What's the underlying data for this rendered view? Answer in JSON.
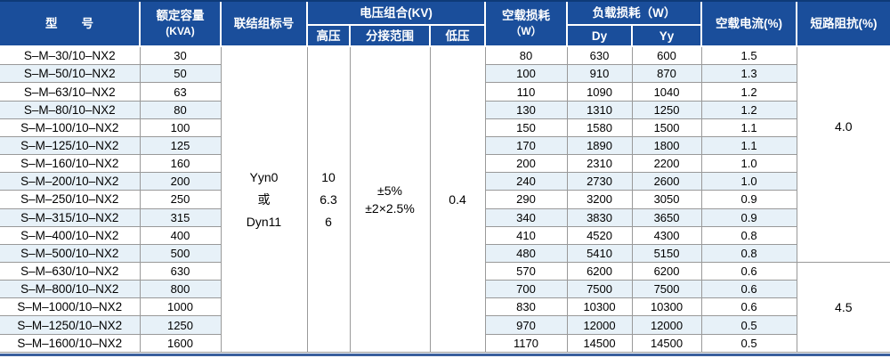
{
  "table": {
    "header": {
      "model": "型　　号",
      "capacity_line1": "额定容量",
      "capacity_line2": "(KVA)",
      "vector_group": "联结组标号",
      "voltage_group": "电压组合(KV)",
      "hv": "高压",
      "tap_range": "分接范围",
      "lv": "低压",
      "no_load_loss_line1": "空载损耗",
      "no_load_loss_line2": "（W）",
      "load_loss": "负载损耗（W）",
      "dy": "Dy",
      "yy": "Yy",
      "no_load_current": "空载电流(%)",
      "short_circuit_impedance": "短路阻抗(%)"
    },
    "merged": {
      "vector_group_lines": [
        "Yyn0",
        "或",
        "Dyn11"
      ],
      "hv_lines": [
        "10",
        "6.3",
        "6"
      ],
      "tap_lines": [
        "±5%",
        "±2×2.5%"
      ],
      "lv": "0.4",
      "impedance_groups": [
        {
          "value": "4.0",
          "rowspan": 12
        },
        {
          "value": "4.5",
          "rowspan": 5
        }
      ]
    },
    "rows": [
      {
        "model": "S–M–30/10–NX2",
        "kva": "30",
        "no_load_loss": "80",
        "dy": "630",
        "yy": "600",
        "no_load_current": "1.5"
      },
      {
        "model": "S–M–50/10–NX2",
        "kva": "50",
        "no_load_loss": "100",
        "dy": "910",
        "yy": "870",
        "no_load_current": "1.3"
      },
      {
        "model": "S–M–63/10–NX2",
        "kva": "63",
        "no_load_loss": "110",
        "dy": "1090",
        "yy": "1040",
        "no_load_current": "1.2"
      },
      {
        "model": "S–M–80/10–NX2",
        "kva": "80",
        "no_load_loss": "130",
        "dy": "1310",
        "yy": "1250",
        "no_load_current": "1.2"
      },
      {
        "model": "S–M–100/10–NX2",
        "kva": "100",
        "no_load_loss": "150",
        "dy": "1580",
        "yy": "1500",
        "no_load_current": "1.1"
      },
      {
        "model": "S–M–125/10–NX2",
        "kva": "125",
        "no_load_loss": "170",
        "dy": "1890",
        "yy": "1800",
        "no_load_current": "1.1"
      },
      {
        "model": "S–M–160/10–NX2",
        "kva": "160",
        "no_load_loss": "200",
        "dy": "2310",
        "yy": "2200",
        "no_load_current": "1.0"
      },
      {
        "model": "S–M–200/10–NX2",
        "kva": "200",
        "no_load_loss": "240",
        "dy": "2730",
        "yy": "2600",
        "no_load_current": "1.0"
      },
      {
        "model": "S–M–250/10–NX2",
        "kva": "250",
        "no_load_loss": "290",
        "dy": "3200",
        "yy": "3050",
        "no_load_current": "0.9"
      },
      {
        "model": "S–M–315/10–NX2",
        "kva": "315",
        "no_load_loss": "340",
        "dy": "3830",
        "yy": "3650",
        "no_load_current": "0.9"
      },
      {
        "model": "S–M–400/10–NX2",
        "kva": "400",
        "no_load_loss": "410",
        "dy": "4520",
        "yy": "4300",
        "no_load_current": "0.8"
      },
      {
        "model": "S–M–500/10–NX2",
        "kva": "500",
        "no_load_loss": "480",
        "dy": "5410",
        "yy": "5150",
        "no_load_current": "0.8"
      },
      {
        "model": "S–M–630/10–NX2",
        "kva": "630",
        "no_load_loss": "570",
        "dy": "6200",
        "yy": "6200",
        "no_load_current": "0.6"
      },
      {
        "model": "S–M–800/10–NX2",
        "kva": "800",
        "no_load_loss": "700",
        "dy": "7500",
        "yy": "7500",
        "no_load_current": "0.6"
      },
      {
        "model": "S–M–1000/10–NX2",
        "kva": "1000",
        "no_load_loss": "830",
        "dy": "10300",
        "yy": "10300",
        "no_load_current": "0.6"
      },
      {
        "model": "S–M–1250/10–NX2",
        "kva": "1250",
        "no_load_loss": "970",
        "dy": "12000",
        "yy": "12000",
        "no_load_current": "0.5"
      },
      {
        "model": "S–M–1600/10–NX2",
        "kva": "1600",
        "no_load_loss": "1170",
        "dy": "14500",
        "yy": "14500",
        "no_load_current": "0.5"
      }
    ]
  },
  "colors": {
    "header_bg": "#1a4e9b",
    "header_text": "#ffffff",
    "stripe": "#e7f1f8",
    "grid_line": "#999999",
    "top_edge": "#0e3a78",
    "bottom_bar": "#3a5f9d"
  }
}
